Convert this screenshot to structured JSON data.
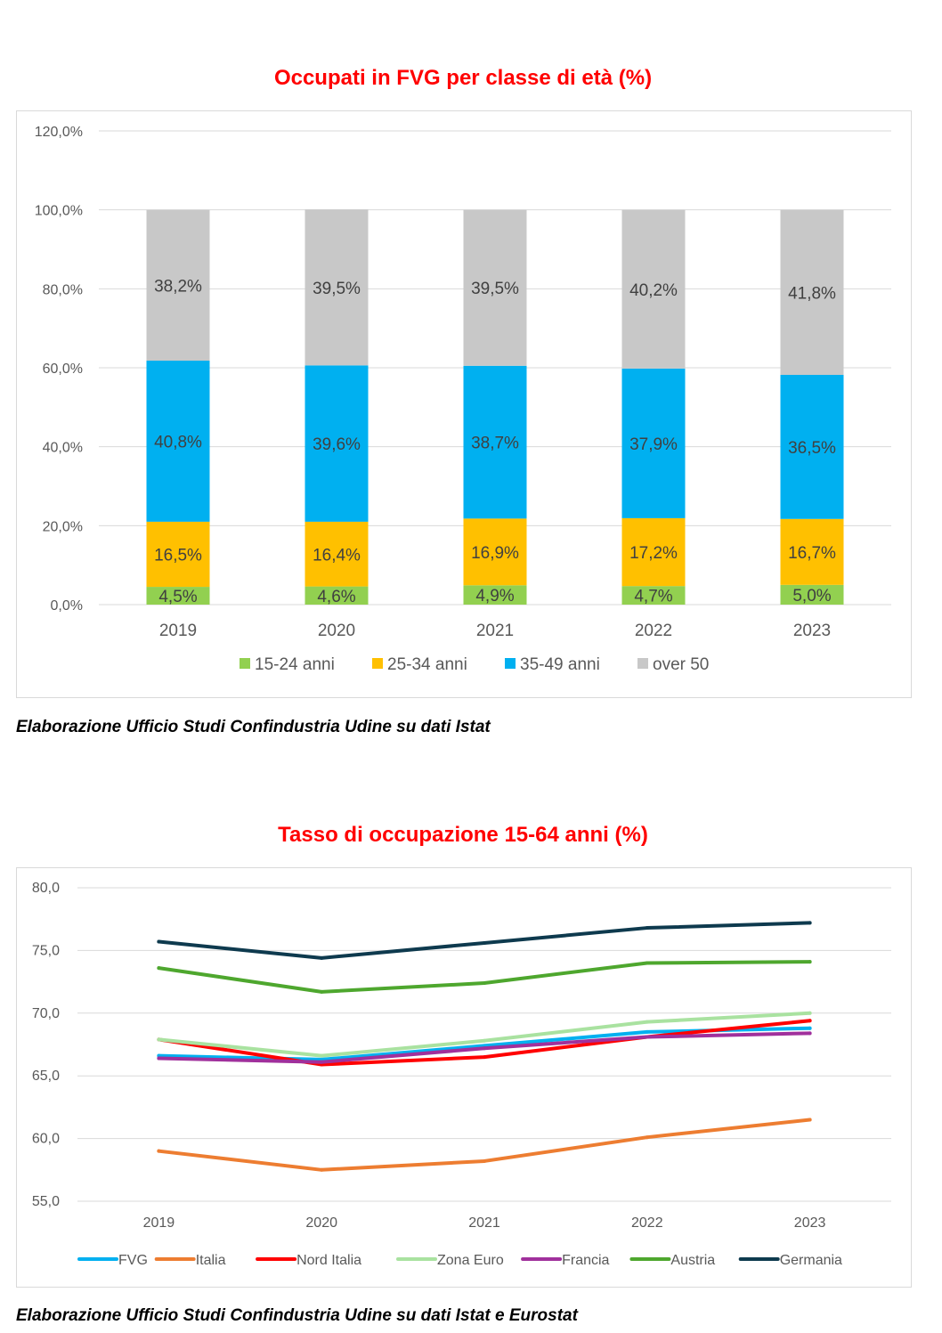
{
  "colors": {
    "title": "#ff0000",
    "grid": "#d9d9d9",
    "axis_text": "#595959",
    "label_text": "#404040"
  },
  "chart1": {
    "title": "Occupati in FVG per classe di età (%)",
    "source": "Elaborazione Ufficio Studi Confindustria Udine su dati Istat",
    "chart_data": {
      "type": "bar",
      "stacked": true,
      "categories": [
        "2019",
        "2020",
        "2021",
        "2022",
        "2023"
      ],
      "ylim": [
        0,
        120
      ],
      "yticks": [
        0,
        20,
        40,
        60,
        80,
        100,
        120
      ],
      "ytick_labels": [
        "0,0%",
        "20,0%",
        "40,0%",
        "60,0%",
        "80,0%",
        "100,0%",
        "120,0%"
      ],
      "grid": true,
      "legend_position": "bottom",
      "series": [
        {
          "name": "15-24 anni",
          "color": "#92d050",
          "values": [
            4.5,
            4.6,
            4.9,
            4.7,
            5.0
          ],
          "labels": [
            "4,5%",
            "4,6%",
            "4,9%",
            "4,7%",
            "5,0%"
          ]
        },
        {
          "name": "25-34 anni",
          "color": "#ffc000",
          "values": [
            16.5,
            16.4,
            16.9,
            17.2,
            16.7
          ],
          "labels": [
            "16,5%",
            "16,4%",
            "16,9%",
            "17,2%",
            "16,7%"
          ]
        },
        {
          "name": "35-49 anni",
          "color": "#00b0f0",
          "values": [
            40.8,
            39.6,
            38.7,
            37.9,
            36.5
          ],
          "labels": [
            "40,8%",
            "39,6%",
            "38,7%",
            "37,9%",
            "36,5%"
          ]
        },
        {
          "name": "over 50",
          "color": "#c8c8c8",
          "values": [
            38.2,
            39.5,
            39.5,
            40.2,
            41.8
          ],
          "labels": [
            "38,2%",
            "39,5%",
            "39,5%",
            "40,2%",
            "41,8%"
          ]
        }
      ]
    }
  },
  "chart2": {
    "title": "Tasso di occupazione 15-64 anni (%)",
    "source": "Elaborazione Ufficio Studi Confindustria Udine su dati Istat e Eurostat",
    "chart_data": {
      "type": "line",
      "x": [
        "2019",
        "2020",
        "2021",
        "2022",
        "2023"
      ],
      "ylim": [
        55,
        80
      ],
      "yticks": [
        55,
        60,
        65,
        70,
        75,
        80
      ],
      "ytick_labels": [
        "55,0",
        "60,0",
        "65,0",
        "70,0",
        "75,0",
        "80,0"
      ],
      "grid": true,
      "legend_position": "bottom",
      "series": [
        {
          "name": "FVG",
          "color": "#00b0f0",
          "values": [
            66.6,
            66.3,
            67.4,
            68.5,
            68.8
          ]
        },
        {
          "name": "Italia",
          "color": "#ed7d31",
          "values": [
            59.0,
            57.5,
            58.2,
            60.1,
            61.5
          ]
        },
        {
          "name": "Nord Italia",
          "color": "#ff0000",
          "values": [
            67.9,
            65.9,
            66.5,
            68.1,
            69.4
          ]
        },
        {
          "name": "Zona Euro",
          "color": "#a9e2a0",
          "values": [
            67.9,
            66.6,
            67.8,
            69.3,
            70.0
          ]
        },
        {
          "name": "Francia",
          "color": "#a0309c",
          "values": [
            66.4,
            66.1,
            67.2,
            68.1,
            68.4
          ]
        },
        {
          "name": "Austria",
          "color": "#4ea72e",
          "values": [
            73.6,
            71.7,
            72.4,
            74.0,
            74.1
          ]
        },
        {
          "name": "Germania",
          "color": "#0e3a4e",
          "values": [
            75.7,
            74.4,
            75.6,
            76.8,
            77.2
          ]
        }
      ]
    }
  }
}
